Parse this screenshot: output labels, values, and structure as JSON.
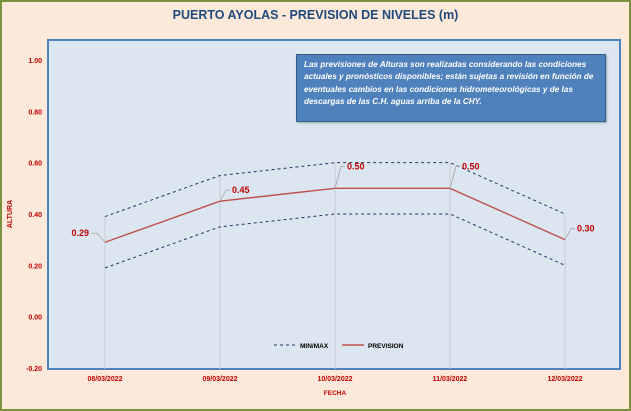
{
  "chart_data": {
    "type": "line",
    "title": "PUERTO AYOLAS - PREVISION DE NIVELES (m)",
    "xlabel": "FECHA",
    "ylabel": "ALTURA",
    "ylim": [
      -0.2,
      1.0
    ],
    "yticks": [
      "1.00",
      "0.80",
      "0.60",
      "0.40",
      "0.20",
      "0.00",
      "-0.20"
    ],
    "categories": [
      "08/03/2022",
      "09/03/2022",
      "10/03/2022",
      "11/03/2022",
      "12/03/2022"
    ],
    "series": [
      {
        "name": "MIN/MAX",
        "style": "dashed",
        "color": "#1f3864",
        "min": [
          0.19,
          0.35,
          0.4,
          0.4,
          0.2
        ],
        "max": [
          0.39,
          0.55,
          0.6,
          0.6,
          0.4
        ]
      },
      {
        "name": "PREVISION",
        "style": "solid",
        "color": "#c0504d",
        "values": [
          0.29,
          0.45,
          0.5,
          0.5,
          0.3
        ],
        "labels": [
          "0.29",
          "0.45",
          "0.50",
          "0.50",
          "0.30"
        ]
      }
    ],
    "legend_position": "bottom-center",
    "annotation": "Las previsiones de Alturas son realizadas considerando las condiciones actuales y pronósticos disponibles; están sujetas a revisión en función de eventuales cambios en las condiciones hidrometeorológicas y de las descargas de las C.H. aguas arriba de la CHY."
  },
  "colors": {
    "frame_bg": "#fde9d9",
    "frame_border": "#77933c",
    "plot_bg": "#dce6f1",
    "plot_border": "#4f81bd",
    "label": "#c00000"
  }
}
